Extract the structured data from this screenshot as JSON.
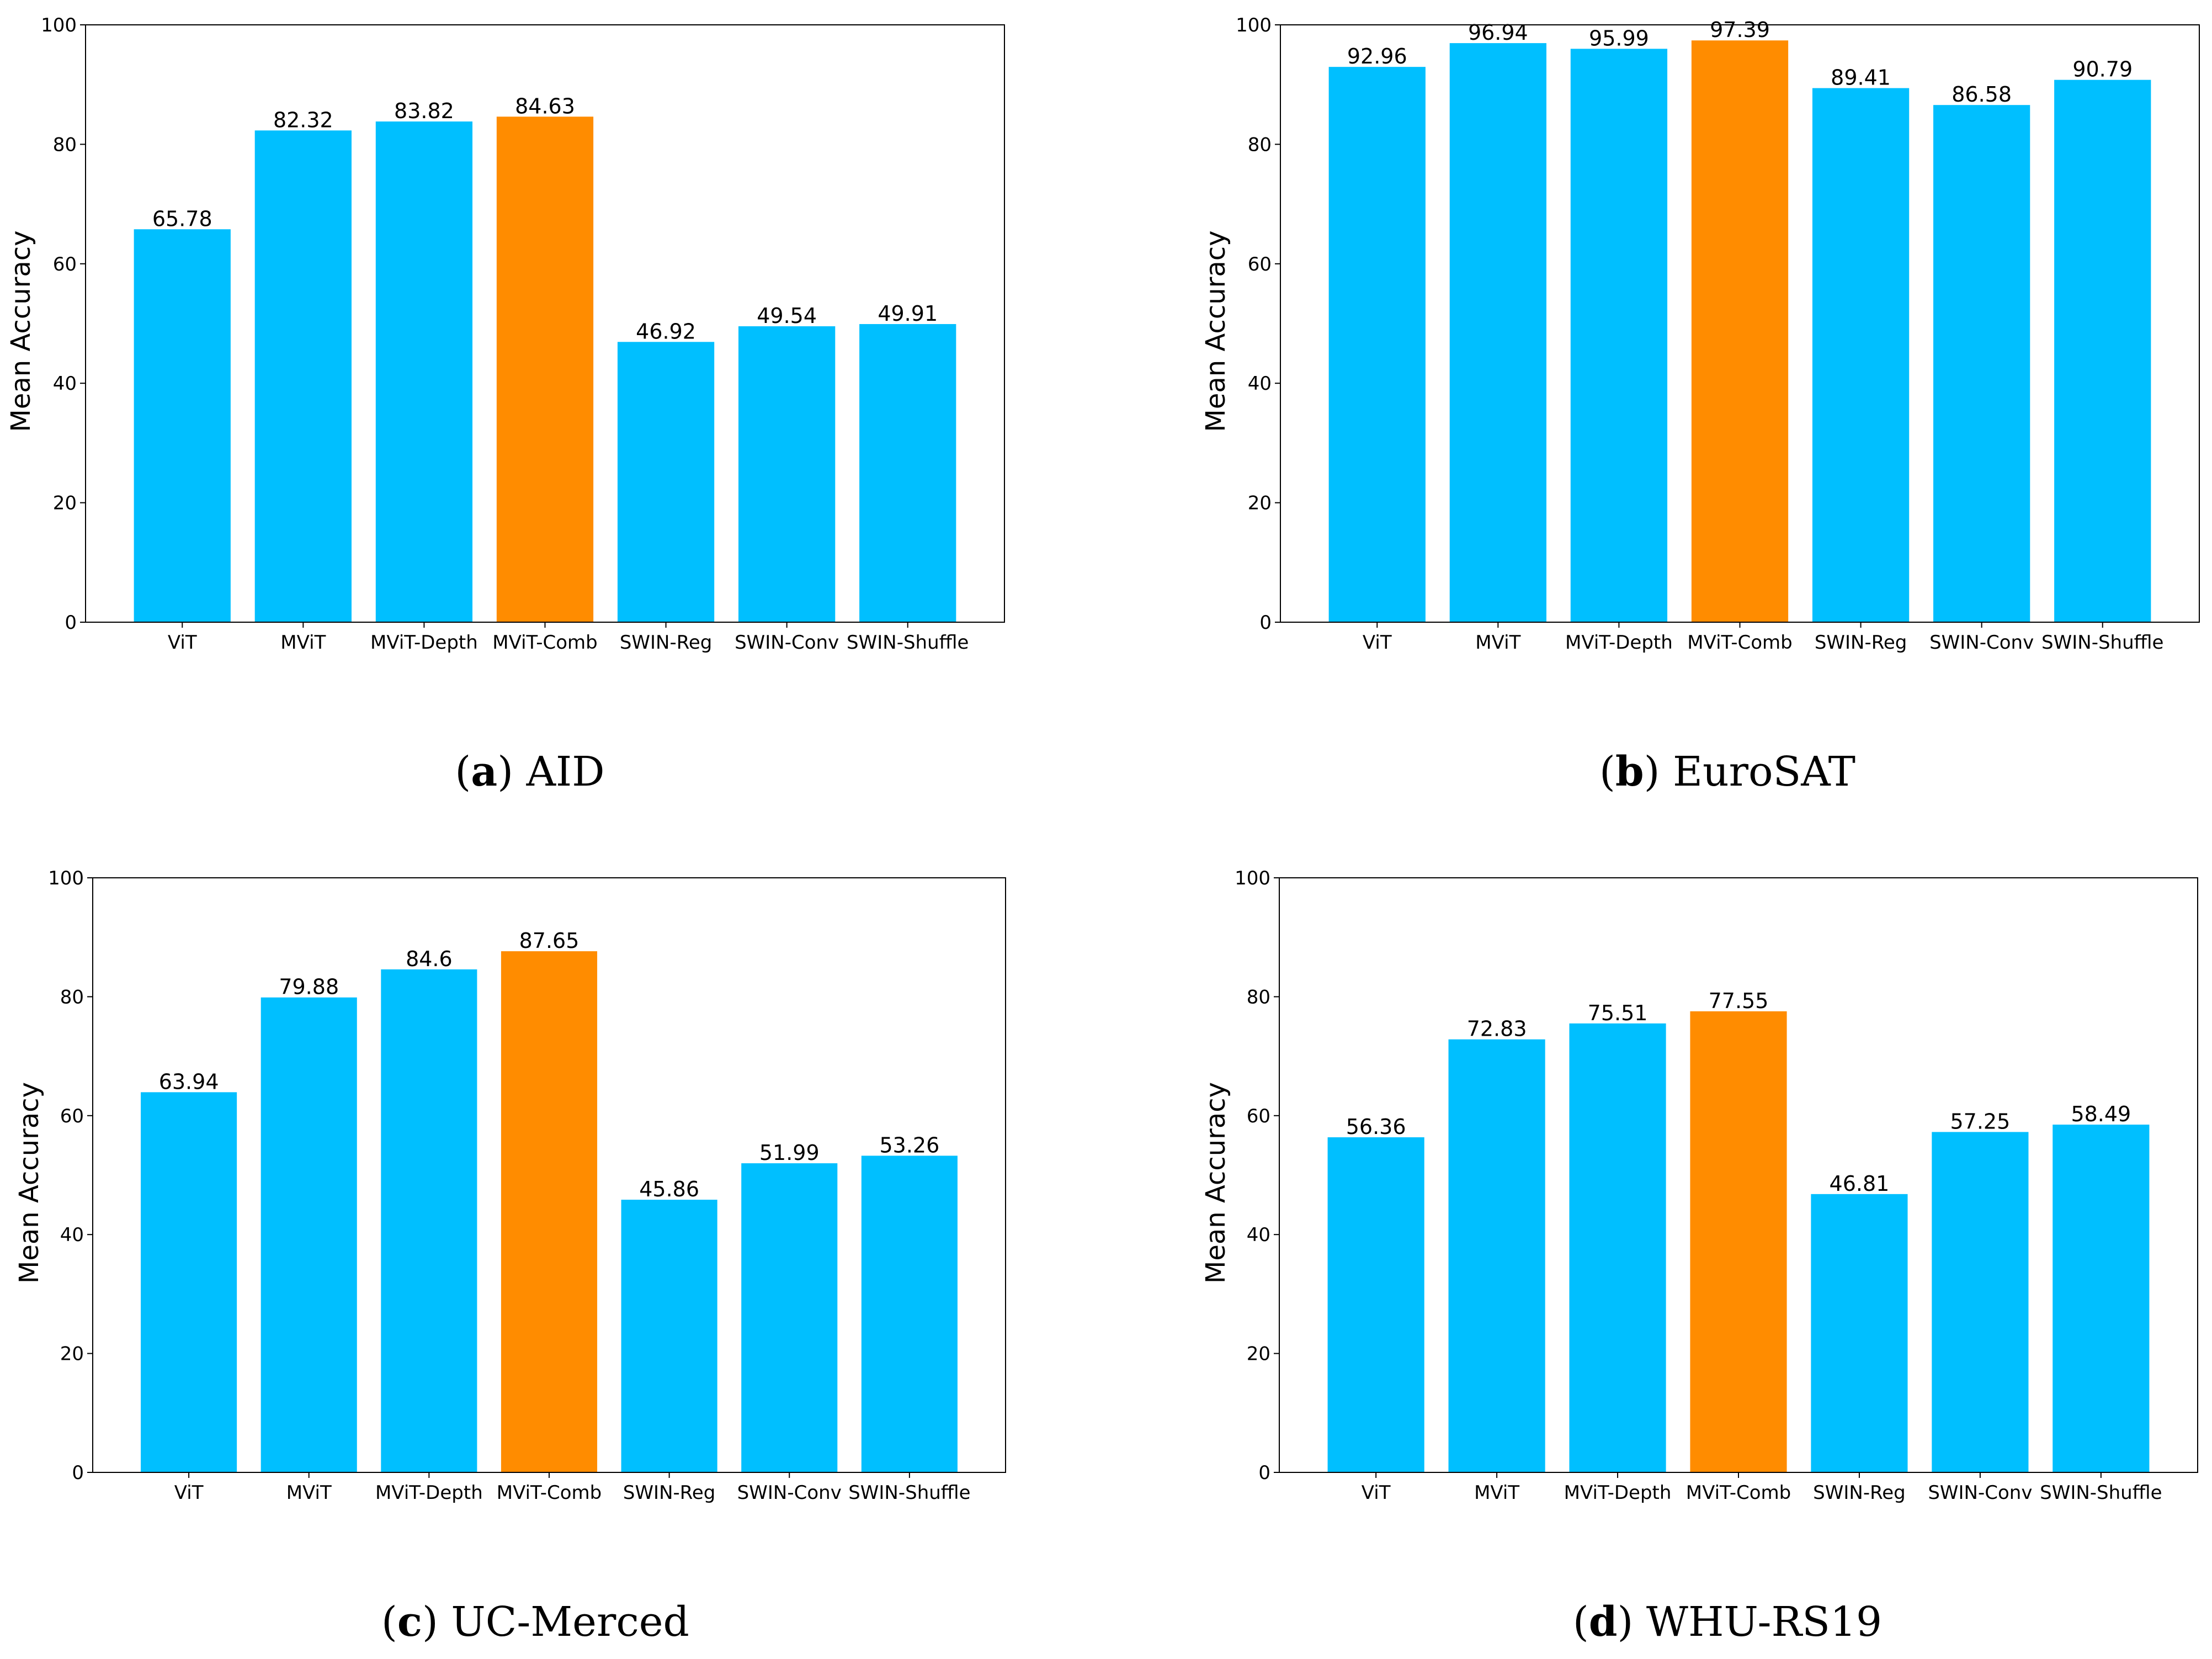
{
  "colors": {
    "bar": "#00BFFF",
    "highlight": "#FF8C00",
    "axis": "#000000"
  },
  "chart_data": [
    {
      "type": "bar",
      "caption_letter": "a",
      "caption_name": "AID",
      "ylabel": "Mean Accuracy",
      "xlabel": "",
      "ylim": [
        0,
        100
      ],
      "yticks": [
        0,
        20,
        40,
        60,
        80,
        100
      ],
      "categories": [
        "ViT",
        "MViT",
        "MViT-Depth",
        "MViT-Comb",
        "SWIN-Reg",
        "SWIN-Conv",
        "SWIN-Shuffle"
      ],
      "values": [
        65.78,
        82.32,
        83.82,
        84.63,
        46.92,
        49.54,
        49.91
      ],
      "labels": [
        "65.78",
        "82.32",
        "83.82",
        "84.63",
        "46.92",
        "49.54",
        "49.91"
      ],
      "highlight_index": 3
    },
    {
      "type": "bar",
      "caption_letter": "b",
      "caption_name": "EuroSAT",
      "ylabel": "Mean Accuracy",
      "xlabel": "",
      "ylim": [
        0,
        100
      ],
      "yticks": [
        0,
        20,
        40,
        60,
        80,
        100
      ],
      "categories": [
        "ViT",
        "MViT",
        "MViT-Depth",
        "MViT-Comb",
        "SWIN-Reg",
        "SWIN-Conv",
        "SWIN-Shuffle"
      ],
      "values": [
        92.96,
        96.94,
        95.99,
        97.39,
        89.41,
        86.58,
        90.79
      ],
      "labels": [
        "92.96",
        "96.94",
        "95.99",
        "97.39",
        "89.41",
        "86.58",
        "90.79"
      ],
      "highlight_index": 3
    },
    {
      "type": "bar",
      "caption_letter": "c",
      "caption_name": "UC-Merced",
      "ylabel": "Mean Accuracy",
      "xlabel": "",
      "ylim": [
        0,
        100
      ],
      "yticks": [
        0,
        20,
        40,
        60,
        80,
        100
      ],
      "categories": [
        "ViT",
        "MViT",
        "MViT-Depth",
        "MViT-Comb",
        "SWIN-Reg",
        "SWIN-Conv",
        "SWIN-Shuffle"
      ],
      "values": [
        63.94,
        79.88,
        84.6,
        87.65,
        45.86,
        51.99,
        53.26
      ],
      "labels": [
        "63.94",
        "79.88",
        "84.6",
        "87.65",
        "45.86",
        "51.99",
        "53.26"
      ],
      "highlight_index": 3
    },
    {
      "type": "bar",
      "caption_letter": "d",
      "caption_name": "WHU-RS19",
      "ylabel": "Mean Accuracy",
      "xlabel": "",
      "ylim": [
        0,
        100
      ],
      "yticks": [
        0,
        20,
        40,
        60,
        80,
        100
      ],
      "categories": [
        "ViT",
        "MViT",
        "MViT-Depth",
        "MViT-Comb",
        "SWIN-Reg",
        "SWIN-Conv",
        "SWIN-Shuffle"
      ],
      "values": [
        56.36,
        72.83,
        75.51,
        77.55,
        46.81,
        57.25,
        58.49
      ],
      "labels": [
        "56.36",
        "72.83",
        "75.51",
        "77.55",
        "46.81",
        "57.25",
        "58.49"
      ],
      "highlight_index": 3
    }
  ]
}
